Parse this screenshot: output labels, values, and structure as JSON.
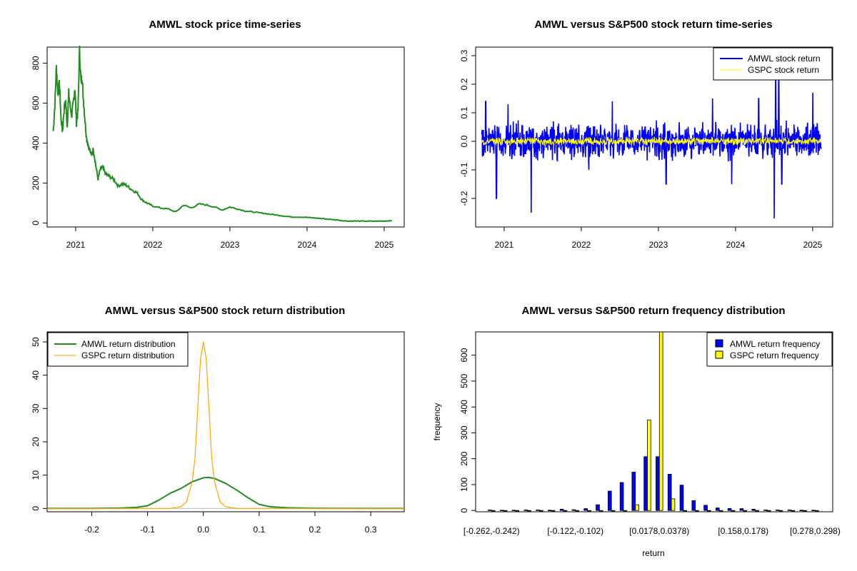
{
  "chart_data": [
    {
      "id": "price",
      "type": "line",
      "title": "AMWL stock price time-series",
      "xlabel": "",
      "ylabel": "",
      "xlim": [
        2020.63,
        2025.26
      ],
      "ylim": [
        -20,
        880
      ],
      "x_ticks": [
        2021,
        2022,
        2023,
        2024,
        2025
      ],
      "x_tick_labels": [
        "2021",
        "2022",
        "2023",
        "2024",
        "2025"
      ],
      "y_ticks": [
        0,
        200,
        400,
        600,
        800
      ],
      "y_tick_labels": [
        "0",
        "200",
        "400",
        "600",
        "800"
      ],
      "series": [
        {
          "name": "AMWL stock price",
          "color": "#228B22",
          "x": [
            2020.71,
            2020.73,
            2020.75,
            2020.77,
            2020.79,
            2020.81,
            2020.83,
            2020.85,
            2020.87,
            2020.89,
            2020.91,
            2020.93,
            2020.95,
            2020.97,
            2020.99,
            2021.01,
            2021.03,
            2021.05,
            2021.07,
            2021.08,
            2021.1,
            2021.12,
            2021.14,
            2021.17,
            2021.2,
            2021.23,
            2021.26,
            2021.29,
            2021.32,
            2021.35,
            2021.38,
            2021.41,
            2021.45,
            2021.5,
            2021.55,
            2021.6,
            2021.65,
            2021.7,
            2021.75,
            2021.8,
            2021.85,
            2021.9,
            2021.95,
            2022.0,
            2022.1,
            2022.2,
            2022.3,
            2022.4,
            2022.5,
            2022.6,
            2022.7,
            2022.8,
            2022.9,
            2023.0,
            2023.1,
            2023.2,
            2023.3,
            2023.4,
            2023.5,
            2023.6,
            2023.7,
            2023.8,
            2023.9,
            2024.0,
            2024.1,
            2024.2,
            2024.3,
            2024.4,
            2024.5,
            2024.6,
            2024.7,
            2024.8,
            2024.9,
            2025.0,
            2025.1
          ],
          "y": [
            460,
            590,
            780,
            640,
            700,
            520,
            460,
            570,
            610,
            480,
            650,
            580,
            540,
            600,
            680,
            500,
            560,
            860,
            700,
            740,
            620,
            520,
            430,
            380,
            340,
            370,
            290,
            220,
            270,
            280,
            250,
            240,
            230,
            215,
            185,
            195,
            190,
            175,
            160,
            150,
            120,
            105,
            95,
            85,
            75,
            70,
            55,
            90,
            75,
            95,
            90,
            80,
            65,
            80,
            70,
            60,
            55,
            50,
            45,
            40,
            35,
            30,
            30,
            28,
            25,
            22,
            18,
            15,
            10,
            10,
            9,
            9,
            9,
            10,
            12
          ]
        }
      ]
    },
    {
      "id": "returns",
      "type": "line",
      "title": "AMWL versus S&P500 stock return time-series",
      "xlabel": "",
      "ylabel": "",
      "xlim": [
        2020.63,
        2025.26
      ],
      "ylim": [
        -0.3,
        0.33
      ],
      "x_ticks": [
        2021,
        2022,
        2023,
        2024,
        2025
      ],
      "x_tick_labels": [
        "2021",
        "2022",
        "2023",
        "2024",
        "2025"
      ],
      "y_ticks": [
        -0.2,
        -0.1,
        0.0,
        0.1,
        0.2,
        0.3
      ],
      "y_tick_labels": [
        "-0.2",
        "-0.1",
        "0.0",
        "0.1",
        "0.2",
        "0.3"
      ],
      "series": [
        {
          "name": "AMWL stock return",
          "color": "#0000FF",
          "x_range": [
            2020.71,
            2025.11
          ],
          "amplitude": 0.055,
          "spikes": [
            [
              2020.76,
              0.14
            ],
            [
              2020.9,
              -0.2
            ],
            [
              2021.05,
              0.13
            ],
            [
              2021.35,
              -0.25
            ],
            [
              2022.1,
              -0.1
            ],
            [
              2022.4,
              0.14
            ],
            [
              2023.1,
              -0.15
            ],
            [
              2023.7,
              0.15
            ],
            [
              2023.95,
              -0.15
            ],
            [
              2024.3,
              0.15
            ],
            [
              2024.5,
              -0.27
            ],
            [
              2024.52,
              0.22
            ],
            [
              2024.56,
              0.25
            ],
            [
              2024.6,
              -0.15
            ],
            [
              2025.0,
              0.17
            ]
          ]
        },
        {
          "name": "GSPC stock return",
          "color": "#FFFF00",
          "x_range": [
            2020.71,
            2025.11
          ],
          "amplitude": 0.012,
          "spikes": []
        }
      ],
      "legend": "top-right"
    },
    {
      "id": "density",
      "type": "line",
      "title": "AMWL versus S&P500 stock return distribution",
      "xlabel": "",
      "ylabel": "",
      "xlim": [
        -0.28,
        0.36
      ],
      "ylim": [
        -1,
        53
      ],
      "x_ticks": [
        -0.2,
        -0.1,
        0.0,
        0.1,
        0.2,
        0.3
      ],
      "x_tick_labels": [
        "-0.2",
        "-0.1",
        "0.0",
        "0.1",
        "0.2",
        "0.3"
      ],
      "y_ticks": [
        0,
        10,
        20,
        30,
        40,
        50
      ],
      "y_tick_labels": [
        "0",
        "10",
        "20",
        "30",
        "40",
        "50"
      ],
      "series": [
        {
          "name": "AMWL return distribution",
          "color": "#228B22",
          "x": [
            -0.28,
            -0.2,
            -0.15,
            -0.12,
            -0.1,
            -0.08,
            -0.06,
            -0.04,
            -0.02,
            0.0,
            0.01,
            0.02,
            0.04,
            0.06,
            0.08,
            0.1,
            0.12,
            0.15,
            0.2,
            0.36
          ],
          "y": [
            0,
            0,
            0.1,
            0.3,
            0.8,
            2.5,
            4.5,
            6.0,
            8.0,
            9.2,
            9.3,
            9.0,
            7.5,
            5.5,
            3.2,
            1.2,
            0.5,
            0.2,
            0.05,
            0
          ]
        },
        {
          "name": "GSPC return distribution",
          "color": "#FFA500",
          "x": [
            -0.28,
            -0.06,
            -0.04,
            -0.03,
            -0.02,
            -0.015,
            -0.01,
            -0.005,
            0.0,
            0.005,
            0.01,
            0.015,
            0.02,
            0.03,
            0.04,
            0.06,
            0.36
          ],
          "y": [
            0,
            0,
            0.5,
            2,
            8,
            15,
            30,
            45,
            50,
            45,
            30,
            15,
            8,
            2,
            0.5,
            0,
            0
          ]
        }
      ],
      "legend": "top-left"
    },
    {
      "id": "freq",
      "type": "bar",
      "title": "AMWL versus S&P500 return frequency distribution",
      "xlabel": "return",
      "ylabel": "frequency",
      "ylim": [
        -5,
        690
      ],
      "y_ticks": [
        0,
        100,
        200,
        300,
        400,
        500,
        600
      ],
      "y_tick_labels": [
        "0",
        "100",
        "200",
        "300",
        "400",
        "500",
        "600"
      ],
      "x_tick_labels": [
        {
          "label": "[-0.262,-0.242)",
          "category": 0
        },
        {
          "label": "[-0.122,-0.102)",
          "category": 7
        },
        {
          "label": "[0.0178,0.0378)",
          "category": 14
        },
        {
          "label": "[0.158,0.178)",
          "category": 21
        },
        {
          "label": "[0.278,0.298)",
          "category": 27
        }
      ],
      "num_categories": 28,
      "series": [
        {
          "name": "AMWL return frequency",
          "color": "#0000FF",
          "values": [
            2,
            1,
            1,
            2,
            2,
            1,
            5,
            3,
            7,
            22,
            75,
            108,
            148,
            208,
            208,
            140,
            98,
            38,
            20,
            10,
            8,
            7,
            5,
            2,
            2,
            2,
            1,
            1
          ]
        },
        {
          "name": "GSPC return frequency",
          "color": "#FFFF00",
          "values": [
            0,
            0,
            0,
            0,
            0,
            0,
            0,
            0,
            0,
            0,
            0,
            0,
            22,
            350,
            690,
            45,
            0,
            0,
            0,
            0,
            0,
            0,
            0,
            0,
            0,
            0,
            0,
            0
          ]
        }
      ],
      "legend": "top-right"
    }
  ]
}
